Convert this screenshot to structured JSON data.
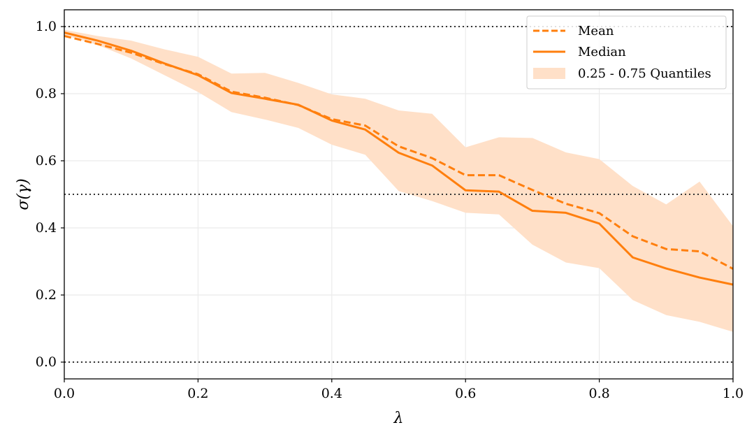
{
  "chart_data": {
    "type": "line",
    "title": "",
    "xlabel": "λ",
    "ylabel": "σ(γ)",
    "xlim": [
      0.0,
      1.0
    ],
    "ylim": [
      -0.05,
      1.05
    ],
    "grid": true,
    "x": [
      0.0,
      0.05,
      0.1,
      0.15,
      0.2,
      0.25,
      0.3,
      0.35,
      0.4,
      0.45,
      0.5,
      0.55,
      0.6,
      0.65,
      0.7,
      0.75,
      0.8,
      0.85,
      0.9,
      0.95,
      1.0
    ],
    "series": [
      {
        "name": "Mean",
        "style": "dashed",
        "color": "#ff7f0e",
        "values": [
          0.972,
          0.948,
          0.922,
          0.888,
          0.858,
          0.806,
          0.788,
          0.766,
          0.724,
          0.705,
          0.643,
          0.608,
          0.557,
          0.557,
          0.513,
          0.472,
          0.444,
          0.375,
          0.337,
          0.33,
          0.278
        ]
      },
      {
        "name": "Median",
        "style": "solid",
        "color": "#ff7f0e",
        "values": [
          0.982,
          0.958,
          0.928,
          0.89,
          0.855,
          0.802,
          0.785,
          0.767,
          0.72,
          0.693,
          0.624,
          0.586,
          0.512,
          0.508,
          0.451,
          0.445,
          0.413,
          0.312,
          0.279,
          0.252,
          0.231
        ]
      },
      {
        "name": "0.25 - 0.75 Quantiles",
        "style": "band",
        "color": "#ffe0c8",
        "lower": [
          0.975,
          0.945,
          0.905,
          0.855,
          0.805,
          0.745,
          0.723,
          0.698,
          0.648,
          0.618,
          0.51,
          0.48,
          0.445,
          0.44,
          0.35,
          0.297,
          0.28,
          0.185,
          0.14,
          0.12,
          0.09
        ],
        "upper": [
          0.99,
          0.972,
          0.958,
          0.932,
          0.91,
          0.86,
          0.862,
          0.832,
          0.798,
          0.785,
          0.75,
          0.74,
          0.64,
          0.67,
          0.668,
          0.625,
          0.605,
          0.525,
          0.47,
          0.538,
          0.405
        ]
      }
    ],
    "reference_lines": [
      1.0,
      0.5,
      0.0
    ],
    "x_ticks": [
      {
        "value": 0.0,
        "label": "0.0"
      },
      {
        "value": 0.2,
        "label": "0.2"
      },
      {
        "value": 0.4,
        "label": "0.4"
      },
      {
        "value": 0.6,
        "label": "0.6"
      },
      {
        "value": 0.8,
        "label": "0.8"
      },
      {
        "value": 1.0,
        "label": "1.0"
      }
    ],
    "y_ticks": [
      {
        "value": 0.0,
        "label": "0.0"
      },
      {
        "value": 0.2,
        "label": "0.2"
      },
      {
        "value": 0.4,
        "label": "0.4"
      },
      {
        "value": 0.6,
        "label": "0.6"
      },
      {
        "value": 0.8,
        "label": "0.8"
      },
      {
        "value": 1.0,
        "label": "1.0"
      }
    ],
    "legend": {
      "position": "top-right",
      "entries": [
        "Mean",
        "Median",
        "0.25 - 0.75 Quantiles"
      ]
    }
  }
}
